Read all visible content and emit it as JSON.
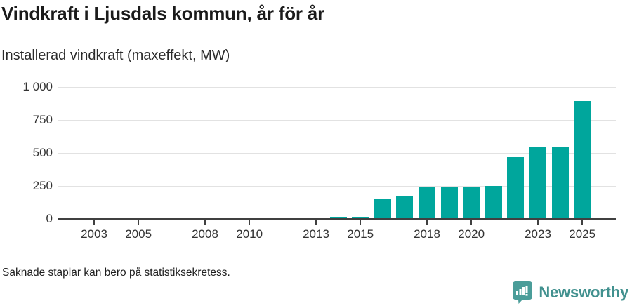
{
  "header": {
    "title": "Vindkraft i Ljusdals kommun, år för år",
    "subtitle": "Installerad vindkraft (maxeffekt, MW)"
  },
  "footer": {
    "note": "Saknade staplar kan bero på statistiksekretess.",
    "brand": "Newsworthy"
  },
  "colors": {
    "bar": "#00a69c",
    "grid": "#e2e2e2",
    "axis": "#404040",
    "axis_text": "#333333",
    "brand_text": "#42918f",
    "brand_bubble": "#4a9d99"
  },
  "chart_data": {
    "type": "bar",
    "title": "Vindkraft i Ljusdals kommun, år för år",
    "ylabel": "Installerad vindkraft (maxeffekt, MW)",
    "categories": [
      2002,
      2003,
      2004,
      2005,
      2006,
      2007,
      2008,
      2009,
      2010,
      2011,
      2012,
      2013,
      2014,
      2015,
      2016,
      2017,
      2018,
      2019,
      2020,
      2021,
      2022,
      2023,
      2024,
      2025
    ],
    "values": [
      null,
      null,
      null,
      null,
      null,
      null,
      null,
      null,
      null,
      null,
      null,
      null,
      10,
      10,
      150,
      175,
      240,
      240,
      240,
      250,
      470,
      550,
      550,
      895
    ],
    "ylim": [
      0,
      1000
    ],
    "yticks": [
      0,
      250,
      500,
      750,
      1000
    ],
    "ytick_labels": [
      "0",
      "250",
      "500",
      "750",
      "1 000"
    ],
    "xticks": [
      2003,
      2005,
      2008,
      2010,
      2013,
      2015,
      2018,
      2020,
      2023,
      2025
    ],
    "grid": true,
    "legend": "none",
    "annotation": "Saknade staplar kan bero på statistiksekretess."
  }
}
